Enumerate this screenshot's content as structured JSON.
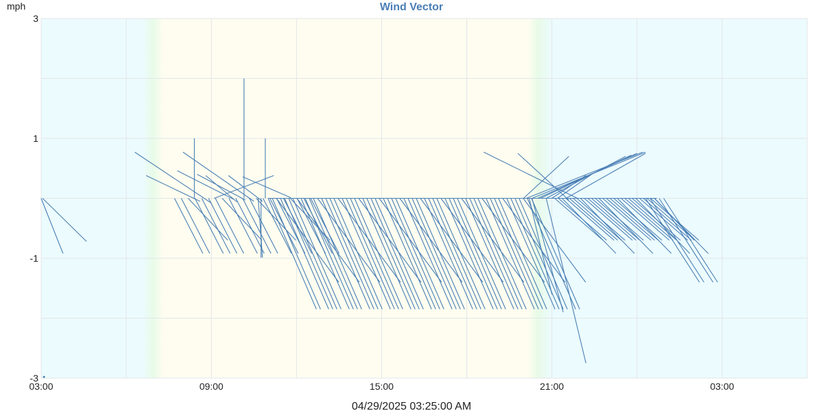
{
  "chart_data": {
    "type": "line",
    "title": "Wind Vector",
    "ylabel": "mph",
    "xlabel": "",
    "footer": "04/29/2025 03:25:00 AM",
    "ylim": [
      -3,
      3
    ],
    "xlim_hours": [
      0,
      27
    ],
    "y_ticks": [
      {
        "value": 3,
        "label": "3"
      },
      {
        "value": 1,
        "label": "1"
      },
      {
        "value": -1,
        "label": "-1"
      },
      {
        "value": -3,
        "label": "-3"
      }
    ],
    "x_ticks": [
      {
        "hour": 0,
        "label": "03:00"
      },
      {
        "hour": 6,
        "label": "09:00"
      },
      {
        "hour": 12,
        "label": "15:00"
      },
      {
        "hour": 18,
        "label": "21:00"
      },
      {
        "hour": 24,
        "label": "03:00"
      }
    ],
    "grid": true,
    "colors": {
      "vector": "#4a7fb5",
      "night": "#ecfbfd",
      "day": "#fefdf0",
      "twilight": "#e8fbe8",
      "grid": "#e3e6e8",
      "title": "#4a7fb5"
    },
    "daylight_hours": {
      "sunrise": 3.6,
      "sunset": 17.3,
      "twilight": 0.7
    },
    "series": [
      {
        "vectors": [
          [
            0.0,
            0.0,
            0.77,
            -0.92
          ],
          [
            0.05,
            0.0,
            1.6,
            -0.72
          ],
          [
            3.3,
            0.77,
            6.0,
            -0.08
          ],
          [
            3.7,
            0.38,
            5.6,
            -0.05
          ],
          [
            4.8,
            0.46,
            6.8,
            -0.02
          ],
          [
            5.0,
            0.77,
            7.5,
            -0.05
          ],
          [
            5.5,
            0.4,
            7.2,
            -0.03
          ],
          [
            5.8,
            0.38,
            6.9,
            -0.06
          ],
          [
            6.6,
            0.38,
            7.8,
            -0.05
          ],
          [
            7.1,
            0.36,
            8.8,
            0.01
          ],
          [
            5.4,
            0.0,
            5.4,
            1.0
          ],
          [
            7.15,
            0.0,
            7.15,
            2.0
          ],
          [
            7.9,
            0.0,
            7.9,
            1.0
          ],
          [
            6.1,
            0.0,
            8.2,
            0.38
          ],
          [
            7.65,
            0.0,
            7.8,
            -0.99
          ],
          [
            7.75,
            0.0,
            7.75,
            -0.99
          ],
          [
            16.8,
            0.75,
            18.6,
            -0.03
          ],
          [
            15.6,
            0.77,
            18.9,
            0.0
          ],
          [
            17.0,
            0.0,
            18.6,
            0.7
          ],
          [
            17.1,
            0.0,
            21.2,
            0.77
          ],
          [
            17.3,
            0.0,
            21.3,
            0.77
          ],
          [
            17.5,
            0.0,
            21.0,
            0.75
          ],
          [
            17.6,
            0.0,
            20.8,
            0.72
          ],
          [
            17.8,
            0.0,
            20.6,
            0.7
          ],
          [
            18.0,
            0.0,
            19.2,
            0.38
          ],
          [
            18.2,
            0.0,
            19.4,
            0.4
          ],
          [
            18.5,
            0.0,
            21.3,
            0.75
          ],
          [
            17.3,
            0.0,
            18.4,
            -1.9
          ],
          [
            17.8,
            0.0,
            19.2,
            -2.75
          ],
          [
            17.2,
            0.0,
            18.0,
            -1.6
          ]
        ],
        "fan": {
          "y0": 0.0,
          "segments": [
            {
              "x0": 4.7,
              "x1": 9.5,
              "step": 0.24,
              "y1": -0.92,
              "dx": 1.0,
              "alt_y1": -0.7,
              "alt_dx": 1.4
            },
            {
              "x0": 8.0,
              "x1": 17.4,
              "step": 0.145,
              "y1": -1.85,
              "dx": 1.7,
              "alt_y1": -1.4,
              "alt_dx": 2.2
            },
            {
              "x0": 18.1,
              "x1": 21.7,
              "step": 0.13,
              "y1": -0.7,
              "dx": 1.7,
              "alt_y1": -0.92,
              "alt_dx": 1.9
            },
            {
              "x0": 21.3,
              "x1": 22.0,
              "step": 0.16,
              "y1": -1.4,
              "dx": 1.9,
              "alt_y1": -0.7,
              "alt_dx": 1.4
            }
          ]
        }
      }
    ]
  }
}
